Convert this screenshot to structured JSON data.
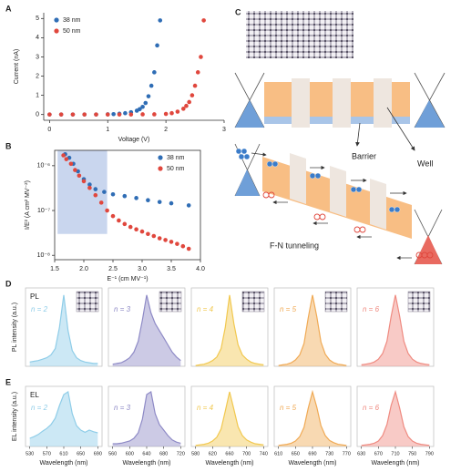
{
  "chart_data": [
    {
      "panel_label": "A",
      "type": "scatter",
      "xlabel": "Voltage (V)",
      "ylabel": "Current (nA)",
      "xlim": [
        -0.1,
        3
      ],
      "ylim": [
        -0.3,
        5.3
      ],
      "xticks": [
        0,
        1,
        2,
        3
      ],
      "yticks": [
        0,
        1,
        2,
        3,
        4,
        5
      ],
      "legend": "upper left",
      "series": [
        {
          "name": "38 nm",
          "color": "#2f6db5",
          "x": [
            0,
            0.2,
            0.4,
            0.6,
            0.8,
            1.0,
            1.1,
            1.2,
            1.3,
            1.4,
            1.5,
            1.55,
            1.6,
            1.65,
            1.7,
            1.75,
            1.8,
            1.85,
            1.9
          ],
          "values": [
            0,
            0,
            0,
            0,
            0,
            0.01,
            0.02,
            0.04,
            0.07,
            0.12,
            0.2,
            0.28,
            0.4,
            0.6,
            0.95,
            1.5,
            2.2,
            3.6,
            4.9
          ]
        },
        {
          "name": "50 nm",
          "color": "#e0473d",
          "x": [
            0,
            0.2,
            0.4,
            0.6,
            0.8,
            1.0,
            1.2,
            1.4,
            1.6,
            1.8,
            2.0,
            2.1,
            2.2,
            2.3,
            2.35,
            2.4,
            2.45,
            2.5,
            2.55,
            2.6,
            2.65
          ],
          "values": [
            0,
            0,
            0,
            0,
            0,
            0,
            0,
            0,
            0.01,
            0.01,
            0.03,
            0.07,
            0.15,
            0.3,
            0.45,
            0.65,
            1.0,
            1.5,
            2.2,
            3.0,
            4.9
          ]
        }
      ]
    },
    {
      "panel_label": "B",
      "type": "scatter",
      "log_y": true,
      "frame": true,
      "xlabel": "E⁻¹ (cm MV⁻¹)",
      "ylabel": "I/E² (A cm² MV⁻²)",
      "xlim": [
        1.5,
        4.0
      ],
      "ylim": [
        8e-09,
        2.2e-06
      ],
      "xticks": [
        1.5,
        {
          "value": 2,
          "label": "2.0"
        },
        2.5,
        {
          "value": 3,
          "label": "3.0"
        },
        3.5,
        {
          "value": 4,
          "label": "4.0"
        }
      ],
      "yticks": [
        {
          "value": 1e-08,
          "label": "10⁻⁸"
        },
        {
          "value": 1e-07,
          "label": "10⁻⁷"
        },
        {
          "value": 1e-06,
          "label": "10⁻⁶"
        }
      ],
      "legend": "upper right",
      "highlight": {
        "x": [
          1.55,
          2.4
        ],
        "y": [
          3e-08,
          2.2e-06
        ],
        "color": "#c9d6ee"
      },
      "series": [
        {
          "name": "38 nm",
          "color": "#2f6db5",
          "x": [
            1.68,
            1.75,
            1.82,
            1.9,
            2.0,
            2.1,
            2.2,
            2.35,
            2.5,
            2.7,
            2.9,
            3.1,
            3.3,
            3.5,
            3.8
          ],
          "values": [
            1.8e-06,
            1.5e-06,
            1.1e-06,
            7.5e-07,
            5e-07,
            3.8e-07,
            3e-07,
            2.6e-07,
            2.3e-07,
            2.1e-07,
            1.9e-07,
            1.7e-07,
            1.55e-07,
            1.45e-07,
            1.3e-07
          ]
        },
        {
          "name": "50 nm",
          "color": "#e0473d",
          "x": [
            1.65,
            1.7,
            1.78,
            1.85,
            1.92,
            2.0,
            2.1,
            2.2,
            2.3,
            2.4,
            2.5,
            2.6,
            2.7,
            2.8,
            2.9,
            3.0,
            3.1,
            3.2,
            3.3,
            3.4,
            3.5,
            3.6,
            3.7,
            3.8
          ],
          "values": [
            1.7e-06,
            1.4e-06,
            1.1e-06,
            8e-07,
            6e-07,
            4.5e-07,
            3.2e-07,
            2.2e-07,
            1.5e-07,
            1e-07,
            7.5e-08,
            6e-08,
            5e-08,
            4.3e-08,
            3.8e-08,
            3.4e-08,
            3e-08,
            2.7e-08,
            2.4e-08,
            2.2e-08,
            2e-08,
            1.8e-08,
            1.6e-08,
            1.4e-08
          ]
        }
      ]
    },
    {
      "panel_label": "D",
      "type": "spectra",
      "tag": "PL",
      "ylabel": "PL intensity (a.u.)",
      "ylim": [
        0,
        1.1
      ],
      "panels": [
        {
          "label": "n = 2",
          "color": "#8fcde8",
          "xlim": [
            520,
            700
          ],
          "x": [
            530,
            540,
            550,
            560,
            570,
            580,
            590,
            600,
            610,
            620,
            630,
            640,
            650,
            660,
            670,
            680,
            690
          ],
          "values": [
            0.06,
            0.07,
            0.08,
            0.1,
            0.12,
            0.16,
            0.25,
            0.55,
            1,
            0.5,
            0.22,
            0.12,
            0.08,
            0.06,
            0.05,
            0.04,
            0.04
          ]
        },
        {
          "label": "n = 3",
          "color": "#8e8ac6",
          "xlim": [
            550,
            730
          ],
          "x": [
            560,
            570,
            580,
            590,
            600,
            610,
            620,
            630,
            640,
            650,
            660,
            670,
            680,
            690,
            700,
            710,
            720
          ],
          "values": [
            0.03,
            0.04,
            0.05,
            0.08,
            0.12,
            0.2,
            0.35,
            0.65,
            1,
            0.75,
            0.6,
            0.5,
            0.4,
            0.3,
            0.2,
            0.13,
            0.08
          ]
        },
        {
          "label": "n = 4",
          "color": "#f1c84f",
          "xlim": [
            570,
            750
          ],
          "x": [
            580,
            590,
            600,
            610,
            620,
            630,
            640,
            650,
            660,
            670,
            680,
            690,
            700,
            710,
            720,
            730,
            740
          ],
          "values": [
            0.01,
            0.02,
            0.03,
            0.05,
            0.08,
            0.13,
            0.25,
            0.55,
            1,
            0.6,
            0.3,
            0.16,
            0.1,
            0.06,
            0.04,
            0.03,
            0.02
          ]
        },
        {
          "label": "n = 5",
          "color": "#f0aa55",
          "xlim": [
            600,
            780
          ],
          "x": [
            610,
            620,
            630,
            640,
            650,
            660,
            670,
            680,
            690,
            700,
            710,
            720,
            730,
            740,
            750,
            760,
            770
          ],
          "values": [
            0.01,
            0.02,
            0.03,
            0.05,
            0.09,
            0.16,
            0.32,
            0.68,
            1,
            0.7,
            0.34,
            0.17,
            0.09,
            0.05,
            0.03,
            0.02,
            0.01
          ]
        },
        {
          "label": "n = 6",
          "color": "#ef8a80",
          "xlim": [
            620,
            800
          ],
          "x": [
            630,
            640,
            650,
            660,
            670,
            680,
            690,
            700,
            710,
            720,
            730,
            740,
            750,
            760,
            770,
            780,
            790
          ],
          "values": [
            0.02,
            0.03,
            0.04,
            0.06,
            0.1,
            0.18,
            0.35,
            0.7,
            1,
            0.7,
            0.35,
            0.18,
            0.1,
            0.06,
            0.04,
            0.03,
            0.02
          ]
        }
      ]
    },
    {
      "panel_label": "E",
      "type": "spectra",
      "tag": "EL",
      "ylabel": "EL intensity (a.u.)",
      "xlabel": "Wavelength (nm)",
      "ylim": [
        0,
        1.1
      ],
      "panels": [
        {
          "label": "n = 2",
          "color": "#8fcde8",
          "xlim": [
            520,
            700
          ],
          "xticks": [
            530,
            570,
            610,
            650,
            690
          ],
          "x": [
            530,
            540,
            550,
            560,
            570,
            580,
            590,
            600,
            610,
            620,
            630,
            640,
            650,
            660,
            670,
            680,
            690
          ],
          "values": [
            0.15,
            0.18,
            0.22,
            0.28,
            0.33,
            0.4,
            0.52,
            0.75,
            0.95,
            1,
            0.6,
            0.38,
            0.3,
            0.26,
            0.3,
            0.27,
            0.25
          ]
        },
        {
          "label": "n = 3",
          "color": "#8e8ac6",
          "xlim": [
            550,
            730
          ],
          "xticks": [
            560,
            600,
            640,
            680,
            720
          ],
          "x": [
            560,
            570,
            580,
            590,
            600,
            610,
            620,
            630,
            640,
            650,
            660,
            670,
            680,
            690,
            700,
            710,
            720
          ],
          "values": [
            0.05,
            0.05,
            0.06,
            0.08,
            0.1,
            0.15,
            0.25,
            0.5,
            0.95,
            1,
            0.6,
            0.4,
            0.3,
            0.2,
            0.12,
            0.08,
            0.06
          ]
        },
        {
          "label": "n = 4",
          "color": "#f1c84f",
          "xlim": [
            570,
            750
          ],
          "xticks": [
            580,
            620,
            660,
            700,
            740
          ],
          "x": [
            580,
            590,
            600,
            610,
            620,
            630,
            640,
            650,
            660,
            670,
            680,
            690,
            700,
            710,
            720,
            730,
            740
          ],
          "values": [
            0.02,
            0.03,
            0.04,
            0.06,
            0.1,
            0.17,
            0.32,
            0.65,
            1,
            0.68,
            0.36,
            0.2,
            0.12,
            0.08,
            0.05,
            0.04,
            0.03
          ]
        },
        {
          "label": "n = 5",
          "color": "#f0aa55",
          "xlim": [
            600,
            780
          ],
          "xticks": [
            610,
            650,
            690,
            730,
            770
          ],
          "x": [
            610,
            620,
            630,
            640,
            650,
            660,
            670,
            680,
            690,
            700,
            710,
            720,
            730,
            740,
            750,
            760,
            770
          ],
          "values": [
            0.02,
            0.03,
            0.04,
            0.06,
            0.1,
            0.18,
            0.35,
            0.7,
            1,
            0.72,
            0.38,
            0.2,
            0.11,
            0.07,
            0.04,
            0.03,
            0.02
          ]
        },
        {
          "label": "n = 6",
          "color": "#ef8a80",
          "xlim": [
            620,
            800
          ],
          "xticks": [
            630,
            670,
            710,
            750,
            790
          ],
          "x": [
            630,
            640,
            650,
            660,
            670,
            680,
            690,
            700,
            710,
            720,
            730,
            740,
            750,
            760,
            770,
            780,
            790
          ],
          "values": [
            0.02,
            0.03,
            0.04,
            0.06,
            0.1,
            0.2,
            0.4,
            0.75,
            1,
            0.7,
            0.36,
            0.18,
            0.1,
            0.06,
            0.04,
            0.03,
            0.02
          ]
        }
      ]
    }
  ],
  "diagram": {
    "panel_label": "C",
    "barrier": "Barrier",
    "well": "Well",
    "tunneling": "F-N tunneling"
  }
}
